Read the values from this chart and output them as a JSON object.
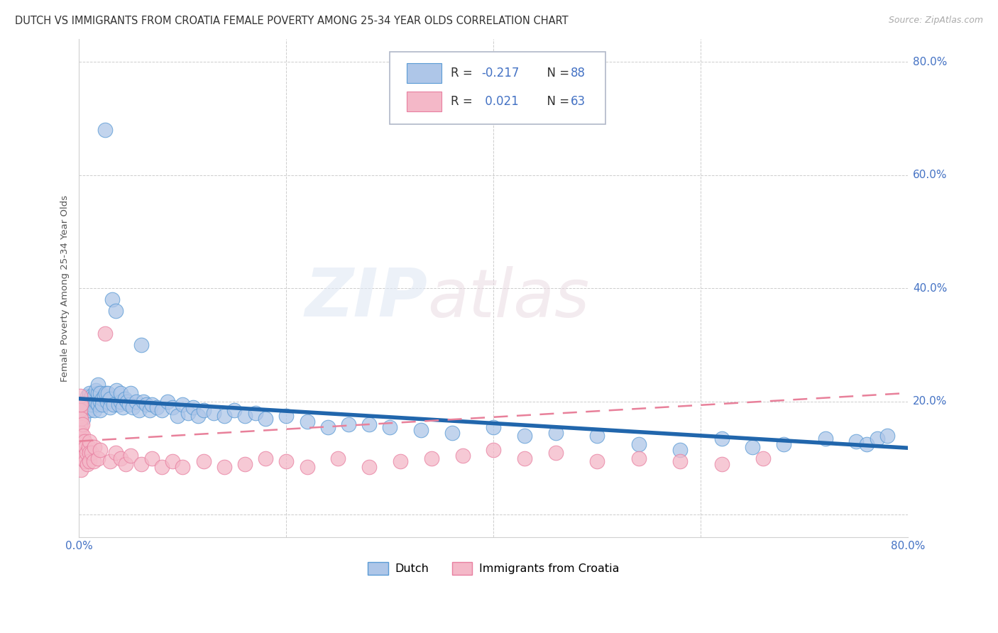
{
  "title": "DUTCH VS IMMIGRANTS FROM CROATIA FEMALE POVERTY AMONG 25-34 YEAR OLDS CORRELATION CHART",
  "source": "Source: ZipAtlas.com",
  "ylabel": "Female Poverty Among 25-34 Year Olds",
  "xmin": 0.0,
  "xmax": 0.8,
  "ymin": -0.04,
  "ymax": 0.84,
  "watermark_zip": "ZIP",
  "watermark_atlas": "atlas",
  "dutch_color": "#aec6e8",
  "dutch_edge_color": "#5b9bd5",
  "croatia_color": "#f4b8c8",
  "croatia_edge_color": "#e87fa0",
  "dutch_R": -0.217,
  "dutch_N": 88,
  "croatia_R": 0.021,
  "croatia_N": 63,
  "dutch_line_color": "#2166ac",
  "croatia_line_color": "#e8809a",
  "legend_label_dutch": "Dutch",
  "legend_label_croatia": "Immigrants from Croatia",
  "background_color": "#ffffff",
  "grid_color": "#c8c8c8",
  "stat_color": "#4472c4",
  "dutch_line_y0": 0.205,
  "dutch_line_y1": 0.118,
  "croatia_line_y0": 0.13,
  "croatia_line_y1": 0.215,
  "dutch_x": [
    0.002,
    0.004,
    0.006,
    0.005,
    0.008,
    0.01,
    0.01,
    0.01,
    0.012,
    0.012,
    0.014,
    0.015,
    0.015,
    0.016,
    0.016,
    0.018,
    0.018,
    0.018,
    0.02,
    0.02,
    0.02,
    0.022,
    0.022,
    0.024,
    0.025,
    0.026,
    0.027,
    0.028,
    0.03,
    0.03,
    0.032,
    0.033,
    0.035,
    0.036,
    0.038,
    0.04,
    0.04,
    0.042,
    0.044,
    0.046,
    0.048,
    0.05,
    0.052,
    0.055,
    0.058,
    0.06,
    0.062,
    0.065,
    0.068,
    0.07,
    0.075,
    0.08,
    0.085,
    0.09,
    0.095,
    0.1,
    0.105,
    0.11,
    0.115,
    0.12,
    0.13,
    0.14,
    0.15,
    0.16,
    0.17,
    0.18,
    0.2,
    0.22,
    0.24,
    0.26,
    0.28,
    0.3,
    0.33,
    0.36,
    0.4,
    0.43,
    0.46,
    0.5,
    0.54,
    0.58,
    0.62,
    0.65,
    0.68,
    0.72,
    0.75,
    0.76,
    0.77,
    0.78
  ],
  "dutch_y": [
    0.19,
    0.17,
    0.2,
    0.195,
    0.21,
    0.215,
    0.185,
    0.2,
    0.195,
    0.21,
    0.2,
    0.185,
    0.21,
    0.2,
    0.22,
    0.195,
    0.215,
    0.23,
    0.2,
    0.185,
    0.215,
    0.205,
    0.195,
    0.21,
    0.68,
    0.215,
    0.2,
    0.215,
    0.205,
    0.19,
    0.38,
    0.195,
    0.36,
    0.22,
    0.195,
    0.2,
    0.215,
    0.19,
    0.205,
    0.2,
    0.195,
    0.215,
    0.19,
    0.2,
    0.185,
    0.3,
    0.2,
    0.195,
    0.185,
    0.195,
    0.19,
    0.185,
    0.2,
    0.19,
    0.175,
    0.195,
    0.18,
    0.19,
    0.175,
    0.185,
    0.18,
    0.175,
    0.185,
    0.175,
    0.18,
    0.17,
    0.175,
    0.165,
    0.155,
    0.16,
    0.16,
    0.155,
    0.15,
    0.145,
    0.155,
    0.14,
    0.145,
    0.14,
    0.125,
    0.115,
    0.135,
    0.12,
    0.125,
    0.135,
    0.13,
    0.125,
    0.135,
    0.14
  ],
  "croatia_x": [
    0.001,
    0.001,
    0.001,
    0.001,
    0.001,
    0.001,
    0.002,
    0.002,
    0.002,
    0.002,
    0.002,
    0.002,
    0.002,
    0.003,
    0.003,
    0.003,
    0.004,
    0.004,
    0.005,
    0.005,
    0.006,
    0.006,
    0.007,
    0.008,
    0.009,
    0.01,
    0.01,
    0.01,
    0.012,
    0.014,
    0.015,
    0.018,
    0.02,
    0.025,
    0.03,
    0.035,
    0.04,
    0.045,
    0.05,
    0.06,
    0.07,
    0.08,
    0.09,
    0.1,
    0.12,
    0.14,
    0.16,
    0.18,
    0.2,
    0.22,
    0.25,
    0.28,
    0.31,
    0.34,
    0.37,
    0.4,
    0.43,
    0.46,
    0.5,
    0.54,
    0.58,
    0.62,
    0.66
  ],
  "croatia_y": [
    0.16,
    0.175,
    0.195,
    0.21,
    0.185,
    0.14,
    0.155,
    0.17,
    0.195,
    0.145,
    0.125,
    0.105,
    0.08,
    0.16,
    0.13,
    0.1,
    0.14,
    0.115,
    0.13,
    0.105,
    0.12,
    0.095,
    0.11,
    0.09,
    0.12,
    0.13,
    0.11,
    0.095,
    0.11,
    0.095,
    0.12,
    0.1,
    0.115,
    0.32,
    0.095,
    0.11,
    0.1,
    0.09,
    0.105,
    0.09,
    0.1,
    0.085,
    0.095,
    0.085,
    0.095,
    0.085,
    0.09,
    0.1,
    0.095,
    0.085,
    0.1,
    0.085,
    0.095,
    0.1,
    0.105,
    0.115,
    0.1,
    0.11,
    0.095,
    0.1,
    0.095,
    0.09,
    0.1
  ]
}
